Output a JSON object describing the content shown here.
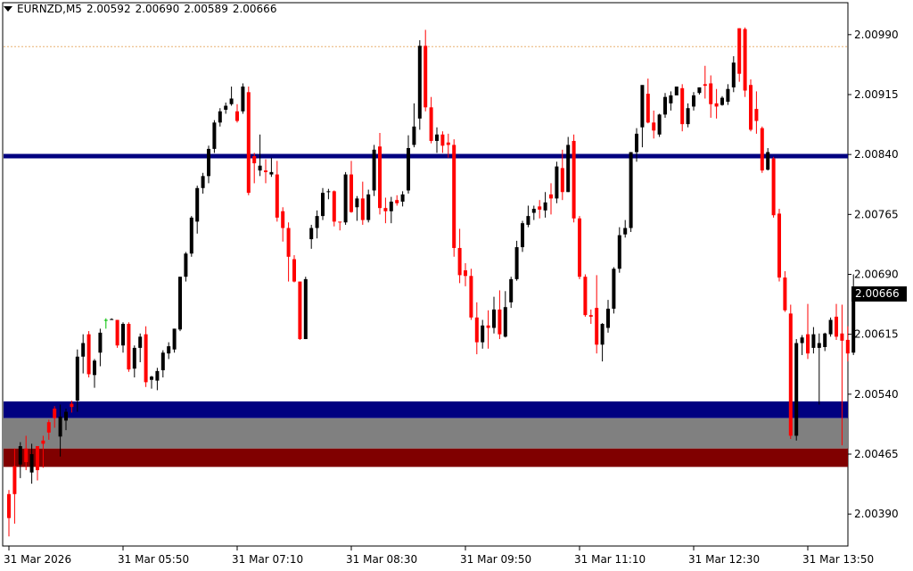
{
  "header": {
    "symbol": "EURNZD,M5",
    "open": "2.00592",
    "high": "2.00690",
    "low": "2.00589",
    "close": "2.00666",
    "menu_icon": "triangle-down-icon"
  },
  "current_price": "2.00666",
  "colors": {
    "bull": "#000000",
    "bear": "#ff0000",
    "neutral": "#00c000",
    "level_line": "#000080",
    "zone_top": "#000080",
    "zone_mid": "#808080",
    "zone_bottom": "#800000",
    "high_dotted": "#e8b070"
  },
  "chart_data": {
    "type": "candlestick",
    "price_axis": [
      "2.00990",
      "2.00915",
      "2.00840",
      "2.00765",
      "2.00690",
      "2.00615",
      "2.00540",
      "2.00465",
      "2.00390"
    ],
    "time_axis": [
      "31 Mar 2026",
      "31 Mar 05:50",
      "31 Mar 07:10",
      "31 Mar 08:30",
      "31 Mar 09:50",
      "31 Mar 11:10",
      "31 Mar 12:30",
      "31 Mar 13:50"
    ],
    "ylim": [
      2.0035,
      2.0103
    ],
    "levels": {
      "horizontal_line": 2.00838,
      "dotted_high": 2.00975,
      "zone_blue": [
        2.0051,
        2.00531
      ],
      "zone_gray": [
        2.00472,
        2.0051
      ],
      "zone_red": [
        2.00449,
        2.00472
      ]
    },
    "candles": [
      [
        2.00415,
        2.0042,
        2.00362,
        2.00385
      ],
      [
        2.0045,
        2.00472,
        2.00378,
        2.00415
      ],
      [
        2.00452,
        2.0048,
        2.00435,
        2.00475
      ],
      [
        2.00472,
        2.00488,
        2.00445,
        2.00455
      ],
      [
        2.00442,
        2.00478,
        2.00428,
        2.00465
      ],
      [
        2.00475,
        2.00475,
        2.00432,
        2.00445
      ],
      [
        2.00482,
        2.00488,
        2.00448,
        2.00478
      ],
      [
        2.00505,
        2.00508,
        2.00483,
        2.00492
      ],
      [
        2.00522,
        2.00525,
        2.00498,
        2.0051
      ],
      [
        2.00487,
        2.00527,
        2.00462,
        2.00512
      ],
      [
        2.00507,
        2.00522,
        2.00495,
        2.00518
      ],
      [
        2.00528,
        2.00532,
        2.00517,
        2.00524
      ],
      [
        2.00532,
        2.00596,
        2.00518,
        2.00587
      ],
      [
        2.00587,
        2.00615,
        2.00566,
        2.00604
      ],
      [
        2.00615,
        2.00619,
        2.00561,
        2.00565
      ],
      [
        2.00564,
        2.00584,
        2.00548,
        2.00582
      ],
      [
        2.00592,
        2.00622,
        2.00575,
        2.00617
      ],
      [
        2.00633,
        2.00635,
        2.00622,
        2.00633
      ],
      [
        2.00633,
        2.00635,
        2.00633,
        2.00634
      ],
      [
        2.00633,
        2.00633,
        2.00598,
        2.00601
      ],
      [
        2.00601,
        2.0063,
        2.00592,
        2.00628
      ],
      [
        2.00628,
        2.0063,
        2.00568,
        2.00571
      ],
      [
        2.00572,
        2.00601,
        2.00561,
        2.00598
      ],
      [
        2.00598,
        2.00616,
        2.0058,
        2.00612
      ],
      [
        2.00615,
        2.00625,
        2.00549,
        2.00555
      ],
      [
        2.00558,
        2.00563,
        2.00547,
        2.00562
      ],
      [
        2.00557,
        2.00573,
        2.00545,
        2.00569
      ],
      [
        2.0057,
        2.00595,
        2.00561,
        2.00592
      ],
      [
        2.00591,
        2.00605,
        2.00584,
        2.006
      ],
      [
        2.00596,
        2.00622,
        2.00592,
        2.00622
      ],
      [
        2.00621,
        2.00687,
        2.00619,
        2.00687
      ],
      [
        2.00687,
        2.00718,
        2.00681,
        2.00716
      ],
      [
        2.00716,
        2.00763,
        2.00712,
        2.00761
      ],
      [
        2.00756,
        2.00801,
        2.00741,
        2.00798
      ],
      [
        2.00798,
        2.00817,
        2.00791,
        2.00813
      ],
      [
        2.00813,
        2.00851,
        2.00804,
        2.00847
      ],
      [
        2.00847,
        2.00883,
        2.00842,
        2.0088
      ],
      [
        2.0088,
        2.00898,
        2.00875,
        2.00894
      ],
      [
        2.00896,
        2.00905,
        2.00891,
        2.00901
      ],
      [
        2.00903,
        2.00925,
        2.00901,
        2.0091
      ],
      [
        2.00894,
        2.00903,
        2.0088,
        2.00882
      ],
      [
        2.00894,
        2.00929,
        2.00891,
        2.00925
      ],
      [
        2.00918,
        2.00925,
        2.00789,
        2.00792
      ],
      [
        2.00838,
        2.00842,
        2.00804,
        2.00829
      ],
      [
        2.0082,
        2.00865,
        2.00813,
        2.00826
      ],
      [
        2.0082,
        2.00834,
        2.00804,
        2.00818
      ],
      [
        2.00815,
        2.00836,
        2.00812,
        2.00818
      ],
      [
        2.00815,
        2.00832,
        2.00756,
        2.00761
      ],
      [
        2.00769,
        2.00774,
        2.00731,
        2.00748
      ],
      [
        2.00748,
        2.00755,
        2.00681,
        2.00712
      ],
      [
        2.00709,
        2.00714,
        2.0068,
        2.00681
      ],
      [
        2.00681,
        2.00679,
        2.00608,
        2.00609
      ],
      [
        2.00609,
        2.00687,
        2.00609,
        2.00684
      ],
      [
        2.00734,
        2.00752,
        2.00722,
        2.00748
      ],
      [
        2.00748,
        2.0077,
        2.00735,
        2.00763
      ],
      [
        2.00763,
        2.00798,
        2.00758,
        2.00792
      ],
      [
        2.00793,
        2.00797,
        2.00784,
        2.00794
      ],
      [
        2.00794,
        2.00795,
        2.0075,
        2.00756
      ],
      [
        2.00756,
        2.00755,
        2.00745,
        2.00755
      ],
      [
        2.00755,
        2.00818,
        2.00752,
        2.00815
      ],
      [
        2.00815,
        2.00832,
        2.00767,
        2.00768
      ],
      [
        2.00774,
        2.00788,
        2.00757,
        2.00785
      ],
      [
        2.00785,
        2.00806,
        2.00752,
        2.00758
      ],
      [
        2.00758,
        2.00796,
        2.00755,
        2.0079
      ],
      [
        2.00795,
        2.00852,
        2.00788,
        2.00846
      ],
      [
        2.0085,
        2.00867,
        2.00765,
        2.00773
      ],
      [
        2.00773,
        2.00786,
        2.00754,
        2.00769
      ],
      [
        2.00769,
        2.00787,
        2.00754,
        2.00781
      ],
      [
        2.00783,
        2.00789,
        2.00776,
        2.00779
      ],
      [
        2.00781,
        2.00794,
        2.00775,
        2.0079
      ],
      [
        2.00795,
        2.00864,
        2.00791,
        2.00848
      ],
      [
        2.00852,
        2.00904,
        2.00849,
        2.00875
      ],
      [
        2.00885,
        2.00983,
        2.00871,
        2.00976
      ],
      [
        2.00976,
        2.00996,
        2.00894,
        2.00899
      ],
      [
        2.00899,
        2.00912,
        2.00854,
        2.00857
      ],
      [
        2.00857,
        2.00874,
        2.00842,
        2.00865
      ],
      [
        2.00865,
        2.00869,
        2.00842,
        2.00851
      ],
      [
        2.00855,
        2.00866,
        2.00836,
        2.00852
      ],
      [
        2.00852,
        2.00859,
        2.00712,
        2.00723
      ],
      [
        2.00723,
        2.00747,
        2.00679,
        2.00689
      ],
      [
        2.00695,
        2.00704,
        2.00675,
        2.00688
      ],
      [
        2.00688,
        2.00697,
        2.00633,
        2.00636
      ],
      [
        2.00636,
        2.00655,
        2.0059,
        2.00605
      ],
      [
        2.00605,
        2.00633,
        2.00597,
        2.00626
      ],
      [
        2.00626,
        2.00645,
        2.00597,
        2.00623
      ],
      [
        2.00623,
        2.00662,
        2.00616,
        2.00646
      ],
      [
        2.00646,
        2.0067,
        2.00609,
        2.00615
      ],
      [
        2.00612,
        2.00669,
        2.00611,
        2.00649
      ],
      [
        2.00655,
        2.00687,
        2.00648,
        2.00684
      ],
      [
        2.00684,
        2.00732,
        2.00682,
        2.00724
      ],
      [
        2.00724,
        2.00757,
        2.00718,
        2.00754
      ],
      [
        2.00752,
        2.00776,
        2.00749,
        2.00763
      ],
      [
        2.00767,
        2.00776,
        2.00758,
        2.00772
      ],
      [
        2.00775,
        2.00783,
        2.0076,
        2.00771
      ],
      [
        2.0077,
        2.00793,
        2.00761,
        2.0078
      ],
      [
        2.0079,
        2.00804,
        2.00765,
        2.00785
      ],
      [
        2.00785,
        2.00831,
        2.00779,
        2.00825
      ],
      [
        2.00823,
        2.00846,
        2.00783,
        2.00793
      ],
      [
        2.00793,
        2.00862,
        2.00793,
        2.00852
      ],
      [
        2.00857,
        2.00865,
        2.00755,
        2.0076
      ],
      [
        2.0076,
        2.00763,
        2.00684,
        2.00687
      ],
      [
        2.00687,
        2.0069,
        2.00637,
        2.00639
      ],
      [
        2.00639,
        2.00646,
        2.00628,
        2.00637
      ],
      [
        2.00648,
        2.00689,
        2.00591,
        2.00602
      ],
      [
        2.00602,
        2.00629,
        2.00581,
        2.00628
      ],
      [
        2.00623,
        2.00658,
        2.00617,
        2.00647
      ],
      [
        2.00647,
        2.00699,
        2.00641,
        2.00697
      ],
      [
        2.00697,
        2.00749,
        2.00692,
        2.00739
      ],
      [
        2.0074,
        2.00758,
        2.00736,
        2.00748
      ],
      [
        2.00748,
        2.00843,
        2.00743,
        2.00843
      ],
      [
        2.00843,
        2.00873,
        2.00831,
        2.00866
      ],
      [
        2.00874,
        2.00924,
        2.00849,
        2.00927
      ],
      [
        2.00916,
        2.00935,
        2.00879,
        2.0088
      ],
      [
        2.0088,
        2.00895,
        2.0086,
        2.0087
      ],
      [
        2.00865,
        2.00891,
        2.00862,
        2.0089
      ],
      [
        2.0089,
        2.00917,
        2.00886,
        2.00912
      ],
      [
        2.00904,
        2.00919,
        2.00895,
        2.00914
      ],
      [
        2.00914,
        2.00925,
        2.0092,
        2.00925
      ],
      [
        2.00923,
        2.00928,
        2.00869,
        2.00878
      ],
      [
        2.00878,
        2.00904,
        2.00874,
        2.00898
      ],
      [
        2.009,
        2.00918,
        2.00895,
        2.00914
      ],
      [
        2.00917,
        2.00924,
        2.00915,
        2.00924
      ],
      [
        2.00928,
        2.00951,
        2.0091,
        2.00926
      ],
      [
        2.00929,
        2.00939,
        2.00886,
        2.00903
      ],
      [
        2.00904,
        2.00922,
        2.00885,
        2.009
      ],
      [
        2.00902,
        2.00913,
        2.00901,
        2.00911
      ],
      [
        2.00906,
        2.00928,
        2.00902,
        2.00922
      ],
      [
        2.00924,
        2.00963,
        2.00918,
        2.00955
      ],
      [
        2.00998,
        2.00998,
        2.00931,
        2.00941
      ],
      [
        2.00997,
        2.00999,
        2.00912,
        2.0092
      ],
      [
        2.00927,
        2.00934,
        2.00869,
        2.00871
      ],
      [
        2.00897,
        2.00919,
        2.00866,
        2.00882
      ],
      [
        2.00873,
        2.00875,
        2.00817,
        2.0082
      ],
      [
        2.00821,
        2.00848,
        2.0082,
        2.00843
      ],
      [
        2.00835,
        2.00837,
        2.00761,
        2.00764
      ],
      [
        2.00766,
        2.00772,
        2.00681,
        2.00686
      ],
      [
        2.00686,
        2.00694,
        2.00643,
        2.00645
      ],
      [
        2.00641,
        2.00652,
        2.00484,
        2.00488
      ],
      [
        2.00488,
        2.00609,
        2.00482,
        2.00604
      ],
      [
        2.00604,
        2.00614,
        2.00589,
        2.00611
      ],
      [
        2.00615,
        2.00653,
        2.00584,
        2.00591
      ],
      [
        2.00598,
        2.00624,
        2.00591,
        2.00615
      ],
      [
        2.00598,
        2.00616,
        2.00527,
        2.00604
      ],
      [
        2.00599,
        2.00617,
        2.00594,
        2.00616
      ],
      [
        2.00615,
        2.00636,
        2.00612,
        2.00633
      ],
      [
        2.00637,
        2.00653,
        2.00608,
        2.00612
      ],
      [
        2.00616,
        2.00652,
        2.00476,
        2.00607
      ],
      [
        2.00608,
        2.00625,
        2.00581,
        2.00591
      ],
      [
        2.00592,
        2.0069,
        2.00589,
        2.00666
      ]
    ]
  }
}
